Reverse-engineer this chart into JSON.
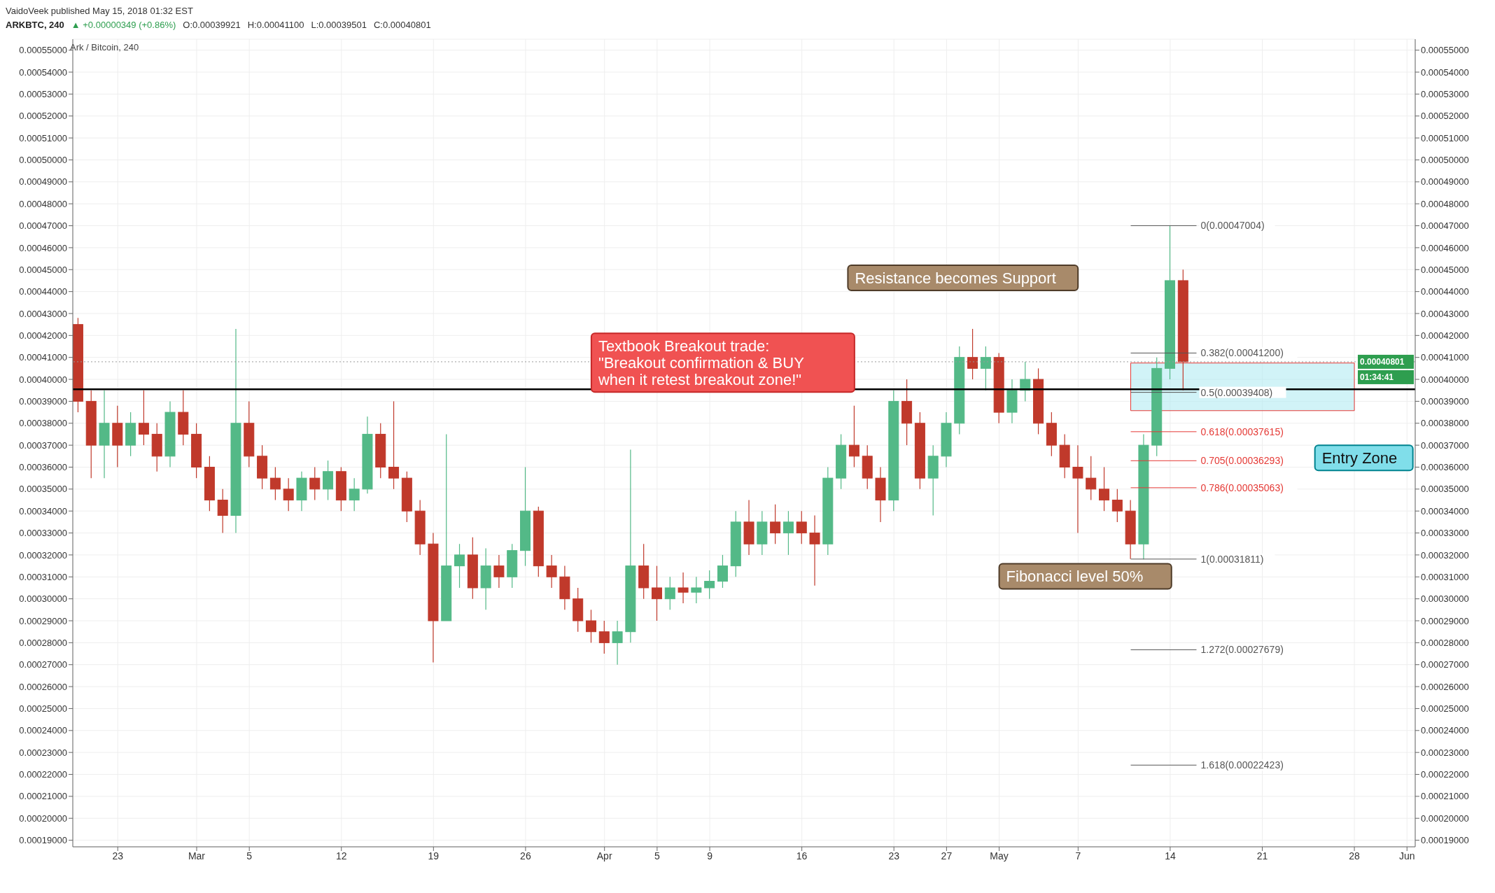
{
  "chart_data": {
    "type": "candlestick",
    "title": "ARKBTC, 240",
    "subtitle": "Ark / Bitcoin, 240",
    "annotations": [
      "VaidoVeek published May 15, 2018 01:32 EST",
      "▲ +0.00000349 (+0.86%)",
      "O:0.00039921",
      "H:0.00041100",
      "L:0.00039501",
      "C:0.00040801",
      "Textbook Breakout trade:\n\"Breakout confirmation & BUY\nwhen it retest breakout zone!\"",
      "Resistance becomes Support",
      "Fibonacci level 50%",
      "Entry Zone",
      "01:34:41"
    ],
    "x": [
      "2018-02-20",
      "2018-02-21",
      "2018-02-22",
      "2018-02-23",
      "2018-02-24",
      "2018-02-25",
      "2018-02-26",
      "2018-02-27",
      "2018-02-28",
      "2018-03-01",
      "2018-03-02",
      "2018-03-03",
      "2018-03-04",
      "2018-03-05",
      "2018-03-06",
      "2018-03-07",
      "2018-03-08",
      "2018-03-09",
      "2018-03-10",
      "2018-03-11",
      "2018-03-12",
      "2018-03-13",
      "2018-03-14",
      "2018-03-15",
      "2018-03-16",
      "2018-03-17",
      "2018-03-18",
      "2018-03-19",
      "2018-03-20",
      "2018-03-21",
      "2018-03-22",
      "2018-03-23",
      "2018-03-24",
      "2018-03-25",
      "2018-03-26",
      "2018-03-27",
      "2018-03-28",
      "2018-03-29",
      "2018-03-30",
      "2018-03-31",
      "2018-04-01",
      "2018-04-02",
      "2018-04-03",
      "2018-04-04",
      "2018-04-05",
      "2018-04-06",
      "2018-04-07",
      "2018-04-08",
      "2018-04-09",
      "2018-04-10",
      "2018-04-11",
      "2018-04-12",
      "2018-04-13",
      "2018-04-14",
      "2018-04-15",
      "2018-04-16",
      "2018-04-17",
      "2018-04-18",
      "2018-04-19",
      "2018-04-20",
      "2018-04-21",
      "2018-04-22",
      "2018-04-23",
      "2018-04-24",
      "2018-04-25",
      "2018-04-26",
      "2018-04-27",
      "2018-04-28",
      "2018-04-29",
      "2018-04-30",
      "2018-05-01",
      "2018-05-02",
      "2018-05-03",
      "2018-05-04",
      "2018-05-05",
      "2018-05-06",
      "2018-05-07",
      "2018-05-08",
      "2018-05-09",
      "2018-05-10",
      "2018-05-11",
      "2018-05-12",
      "2018-05-13",
      "2018-05-14",
      "2018-05-15"
    ],
    "ohlc": [
      [
        0.000425,
        0.000428,
        0.000385,
        0.00039
      ],
      [
        0.00039,
        0.000395,
        0.000355,
        0.00037
      ],
      [
        0.00037,
        0.000395,
        0.000355,
        0.00038
      ],
      [
        0.00038,
        0.000388,
        0.00036,
        0.00037
      ],
      [
        0.00037,
        0.000385,
        0.000365,
        0.00038
      ],
      [
        0.00038,
        0.000395,
        0.00037,
        0.000375
      ],
      [
        0.000375,
        0.00038,
        0.000358,
        0.000365
      ],
      [
        0.000365,
        0.00039,
        0.00036,
        0.000385
      ],
      [
        0.000385,
        0.000395,
        0.00037,
        0.000375
      ],
      [
        0.000375,
        0.00038,
        0.000355,
        0.00036
      ],
      [
        0.00036,
        0.000365,
        0.00034,
        0.000345
      ],
      [
        0.000345,
        0.00035,
        0.00033,
        0.000338
      ],
      [
        0.000338,
        0.000423,
        0.00033,
        0.00038
      ],
      [
        0.00038,
        0.00039,
        0.00036,
        0.000365
      ],
      [
        0.000365,
        0.00037,
        0.00035,
        0.000355
      ],
      [
        0.000355,
        0.00036,
        0.000345,
        0.00035
      ],
      [
        0.00035,
        0.000355,
        0.00034,
        0.000345
      ],
      [
        0.000345,
        0.000358,
        0.00034,
        0.000355
      ],
      [
        0.000355,
        0.00036,
        0.000345,
        0.00035
      ],
      [
        0.00035,
        0.000363,
        0.000345,
        0.000358
      ],
      [
        0.000358,
        0.00036,
        0.00034,
        0.000345
      ],
      [
        0.000345,
        0.000355,
        0.00034,
        0.00035
      ],
      [
        0.00035,
        0.000383,
        0.000348,
        0.000375
      ],
      [
        0.000375,
        0.00038,
        0.000355,
        0.00036
      ],
      [
        0.00036,
        0.00039,
        0.00035,
        0.000355
      ],
      [
        0.000355,
        0.000358,
        0.000335,
        0.00034
      ],
      [
        0.00034,
        0.000345,
        0.00032,
        0.000325
      ],
      [
        0.000325,
        0.00033,
        0.000271,
        0.00029
      ],
      [
        0.00029,
        0.000375,
        0.00029,
        0.000315
      ],
      [
        0.000315,
        0.000325,
        0.000305,
        0.00032
      ],
      [
        0.00032,
        0.000328,
        0.0003,
        0.000305
      ],
      [
        0.000305,
        0.000323,
        0.000295,
        0.000315
      ],
      [
        0.000315,
        0.00032,
        0.000305,
        0.00031
      ],
      [
        0.00031,
        0.000325,
        0.000305,
        0.000322
      ],
      [
        0.000322,
        0.00036,
        0.000315,
        0.00034
      ],
      [
        0.00034,
        0.000342,
        0.00031,
        0.000315
      ],
      [
        0.000315,
        0.00032,
        0.000305,
        0.00031
      ],
      [
        0.00031,
        0.000315,
        0.000295,
        0.0003
      ],
      [
        0.0003,
        0.000305,
        0.000285,
        0.00029
      ],
      [
        0.00029,
        0.000295,
        0.00028,
        0.000285
      ],
      [
        0.000285,
        0.00029,
        0.000275,
        0.00028
      ],
      [
        0.00028,
        0.00029,
        0.00027,
        0.000285
      ],
      [
        0.000285,
        0.000368,
        0.00028,
        0.000315
      ],
      [
        0.000315,
        0.000325,
        0.0003,
        0.000305
      ],
      [
        0.000305,
        0.000315,
        0.00029,
        0.0003
      ],
      [
        0.0003,
        0.00031,
        0.000295,
        0.000305
      ],
      [
        0.000305,
        0.000312,
        0.000298,
        0.000303
      ],
      [
        0.000303,
        0.00031,
        0.000298,
        0.000305
      ],
      [
        0.000305,
        0.000313,
        0.0003,
        0.000308
      ],
      [
        0.000308,
        0.00032,
        0.000305,
        0.000315
      ],
      [
        0.000315,
        0.00034,
        0.00031,
        0.000335
      ],
      [
        0.000335,
        0.000345,
        0.00032,
        0.000325
      ],
      [
        0.000325,
        0.00034,
        0.00032,
        0.000335
      ],
      [
        0.000335,
        0.000343,
        0.000325,
        0.00033
      ],
      [
        0.00033,
        0.00034,
        0.00032,
        0.000335
      ],
      [
        0.000335,
        0.00034,
        0.000325,
        0.00033
      ],
      [
        0.00033,
        0.000338,
        0.000306,
        0.000325
      ],
      [
        0.000325,
        0.00036,
        0.00032,
        0.000355
      ],
      [
        0.000355,
        0.000375,
        0.00035,
        0.00037
      ],
      [
        0.00037,
        0.000388,
        0.00036,
        0.000365
      ],
      [
        0.000365,
        0.00037,
        0.00035,
        0.000355
      ],
      [
        0.000355,
        0.00036,
        0.000335,
        0.000345
      ],
      [
        0.000345,
        0.000395,
        0.00034,
        0.00039
      ],
      [
        0.00039,
        0.0004,
        0.00037,
        0.00038
      ],
      [
        0.00038,
        0.000385,
        0.00035,
        0.000355
      ],
      [
        0.000355,
        0.00037,
        0.000338,
        0.000365
      ],
      [
        0.000365,
        0.000385,
        0.00036,
        0.00038
      ],
      [
        0.00038,
        0.000415,
        0.000375,
        0.00041
      ],
      [
        0.00041,
        0.000423,
        0.0004,
        0.000405
      ],
      [
        0.000405,
        0.000415,
        0.000395,
        0.00041
      ],
      [
        0.00041,
        0.000412,
        0.00038,
        0.000385
      ],
      [
        0.000385,
        0.0004,
        0.00038,
        0.000395
      ],
      [
        0.000395,
        0.000408,
        0.00039,
        0.0004
      ],
      [
        0.0004,
        0.000405,
        0.000375,
        0.00038
      ],
      [
        0.00038,
        0.000385,
        0.000365,
        0.00037
      ],
      [
        0.00037,
        0.000375,
        0.000355,
        0.00036
      ],
      [
        0.00036,
        0.00037,
        0.00033,
        0.000355
      ],
      [
        0.000355,
        0.000365,
        0.000345,
        0.00035
      ],
      [
        0.00035,
        0.00036,
        0.00034,
        0.000345
      ],
      [
        0.000345,
        0.00035,
        0.000335,
        0.00034
      ],
      [
        0.00034,
        0.000345,
        0.00031811,
        0.000325
      ],
      [
        0.000325,
        0.000375,
        0.000318,
        0.00037
      ],
      [
        0.00037,
        0.00041,
        0.000365,
        0.000405
      ],
      [
        0.000405,
        0.00047004,
        0.0004,
        0.000445
      ],
      [
        0.000445,
        0.00045,
        0.00039501,
        0.00040801
      ]
    ],
    "xlim": [
      "2018-02-19T14:00",
      "2018-06-01T15:00"
    ],
    "xticks": [
      {
        "value": "2018-02-23",
        "label": "23"
      },
      {
        "value": "2018-03-01",
        "label": "Mar"
      },
      {
        "value": "2018-03-05",
        "label": "5"
      },
      {
        "value": "2018-03-12",
        "label": "12"
      },
      {
        "value": "2018-03-19",
        "label": "19"
      },
      {
        "value": "2018-03-26",
        "label": "26"
      },
      {
        "value": "2018-04-01",
        "label": "Apr"
      },
      {
        "value": "2018-04-05",
        "label": "5"
      },
      {
        "value": "2018-04-09",
        "label": "9"
      },
      {
        "value": "2018-04-16",
        "label": "16"
      },
      {
        "value": "2018-04-23",
        "label": "23"
      },
      {
        "value": "2018-04-27",
        "label": "27"
      },
      {
        "value": "2018-05-01",
        "label": "May"
      },
      {
        "value": "2018-05-07",
        "label": "7"
      },
      {
        "value": "2018-05-14",
        "label": "14"
      },
      {
        "value": "2018-05-21",
        "label": "21"
      },
      {
        "value": "2018-05-28",
        "label": "28"
      },
      {
        "value": "2018-06-01",
        "label": "Jun"
      }
    ],
    "ylim": [
      0.000187,
      0.000555
    ],
    "yticks": [
      {
        "value": 0.00019,
        "label": "0.00019000"
      },
      {
        "value": 0.0002,
        "label": "0.00020000"
      },
      {
        "value": 0.00021,
        "label": "0.00021000"
      },
      {
        "value": 0.00022,
        "label": "0.00022000"
      },
      {
        "value": 0.00023,
        "label": "0.00023000"
      },
      {
        "value": 0.00024,
        "label": "0.00024000"
      },
      {
        "value": 0.00025,
        "label": "0.00025000"
      },
      {
        "value": 0.00026,
        "label": "0.00026000"
      },
      {
        "value": 0.00027,
        "label": "0.00027000"
      },
      {
        "value": 0.00028,
        "label": "0.00028000"
      },
      {
        "value": 0.00029,
        "label": "0.00029000"
      },
      {
        "value": 0.0003,
        "label": "0.00030000"
      },
      {
        "value": 0.00031,
        "label": "0.00031000"
      },
      {
        "value": 0.00032,
        "label": "0.00032000"
      },
      {
        "value": 0.00033,
        "label": "0.00033000"
      },
      {
        "value": 0.00034,
        "label": "0.00034000"
      },
      {
        "value": 0.00035,
        "label": "0.00035000"
      },
      {
        "value": 0.00036,
        "label": "0.00036000"
      },
      {
        "value": 0.00037,
        "label": "0.00037000"
      },
      {
        "value": 0.00038,
        "label": "0.00038000"
      },
      {
        "value": 0.00039,
        "label": "0.00039000"
      },
      {
        "value": 0.0004,
        "label": "0.00040000"
      },
      {
        "value": 0.00041,
        "label": "0.00041000"
      },
      {
        "value": 0.00042,
        "label": "0.00042000"
      },
      {
        "value": 0.00043,
        "label": "0.00043000"
      },
      {
        "value": 0.00044,
        "label": "0.00044000"
      },
      {
        "value": 0.00045,
        "label": "0.00045000"
      },
      {
        "value": 0.00046,
        "label": "0.00046000"
      },
      {
        "value": 0.00047,
        "label": "0.00047000"
      },
      {
        "value": 0.00048,
        "label": "0.00048000"
      },
      {
        "value": 0.00049,
        "label": "0.00049000"
      },
      {
        "value": 0.0005,
        "label": "0.00050000"
      },
      {
        "value": 0.00051,
        "label": "0.00051000"
      },
      {
        "value": 0.00052,
        "label": "0.00052000"
      },
      {
        "value": 0.00053,
        "label": "0.00053000"
      },
      {
        "value": 0.00054,
        "label": "0.00054000"
      },
      {
        "value": 0.00055,
        "label": "0.00055000"
      }
    ],
    "y2lim": [
      0.000187,
      0.000555
    ],
    "y2ticks": [
      {
        "value": 0.00019,
        "label": "0.00019000"
      },
      {
        "value": 0.0002,
        "label": "0.00020000"
      },
      {
        "value": 0.00021,
        "label": "0.00021000"
      },
      {
        "value": 0.00022,
        "label": "0.00022000"
      },
      {
        "value": 0.00023,
        "label": "0.00023000"
      },
      {
        "value": 0.00024,
        "label": "0.00024000"
      },
      {
        "value": 0.00025,
        "label": "0.00025000"
      },
      {
        "value": 0.00026,
        "label": "0.00026000"
      },
      {
        "value": 0.00027,
        "label": "0.00027000"
      },
      {
        "value": 0.00028,
        "label": "0.00028000"
      },
      {
        "value": 0.00029,
        "label": "0.00029000"
      },
      {
        "value": 0.0003,
        "label": "0.00030000"
      },
      {
        "value": 0.00031,
        "label": "0.00031000"
      },
      {
        "value": 0.00032,
        "label": "0.00032000"
      },
      {
        "value": 0.00033,
        "label": "0.00033000"
      },
      {
        "value": 0.00034,
        "label": "0.00034000"
      },
      {
        "value": 0.00035,
        "label": "0.00035000"
      },
      {
        "value": 0.00036,
        "label": "0.00036000"
      },
      {
        "value": 0.00037,
        "label": "0.00037000"
      },
      {
        "value": 0.00038,
        "label": "0.00038000"
      },
      {
        "value": 0.00039,
        "label": "0.00039000"
      },
      {
        "value": 0.0004,
        "label": "0.00040000"
      },
      {
        "value": 0.00041,
        "label": "0.00041000"
      },
      {
        "value": 0.00042,
        "label": "0.00042000"
      },
      {
        "value": 0.00043,
        "label": "0.00043000"
      },
      {
        "value": 0.00044,
        "label": "0.00044000"
      },
      {
        "value": 0.00045,
        "label": "0.00045000"
      },
      {
        "value": 0.00046,
        "label": "0.00046000"
      },
      {
        "value": 0.00047,
        "label": "0.00047000"
      },
      {
        "value": 0.00048,
        "label": "0.00048000"
      },
      {
        "value": 0.00049,
        "label": "0.00049000"
      },
      {
        "value": 0.0005,
        "label": "0.00050000"
      },
      {
        "value": 0.00051,
        "label": "0.00051000"
      },
      {
        "value": 0.00052,
        "label": "0.00052000"
      },
      {
        "value": 0.00053,
        "label": "0.00053000"
      },
      {
        "value": 0.00054,
        "label": "0.00054000"
      },
      {
        "value": 0.00055,
        "label": "0.00055000"
      }
    ],
    "ref_lines": [
      {
        "axis": "y",
        "value": 0.0003955,
        "color": "#000000",
        "line_style": "solid"
      },
      {
        "axis": "y2",
        "value": 0.00040801,
        "label": "0.00040801",
        "color": "#999999",
        "line_style": "dotted"
      },
      {
        "axis": "y",
        "value": 0.00047004,
        "label": "0(0.00047004)",
        "color": "#555555",
        "line_style": "solid"
      },
      {
        "axis": "y",
        "value": 0.000412,
        "label": "0.382(0.00041200)",
        "color": "#555555",
        "line_style": "solid"
      },
      {
        "axis": "y",
        "value": 0.00039408,
        "label": "0.5(0.00039408)",
        "color": "#555555",
        "line_style": "solid"
      },
      {
        "axis": "y",
        "value": 0.00037615,
        "label": "0.618(0.00037615)",
        "color": "#e53935",
        "line_style": "solid"
      },
      {
        "axis": "y",
        "value": 0.00036293,
        "label": "0.705(0.00036293)",
        "color": "#e53935",
        "line_style": "solid"
      },
      {
        "axis": "y",
        "value": 0.00035063,
        "label": "0.786(0.00035063)",
        "color": "#e53935",
        "line_style": "solid"
      },
      {
        "axis": "y",
        "value": 0.00031811,
        "label": "1(0.00031811)",
        "color": "#555555",
        "line_style": "solid"
      },
      {
        "axis": "y",
        "value": 0.00027679,
        "label": "1.272(0.00027679)",
        "color": "#555555",
        "line_style": "solid"
      },
      {
        "axis": "y",
        "value": 0.00022423,
        "label": "1.618(0.00022423)",
        "color": "#555555",
        "line_style": "solid"
      }
    ],
    "bands": [
      {
        "axis": "y",
        "from": 0.00038574,
        "to": 0.00040745,
        "color": "#b2ebf2"
      }
    ],
    "grid": true,
    "legend": false
  }
}
